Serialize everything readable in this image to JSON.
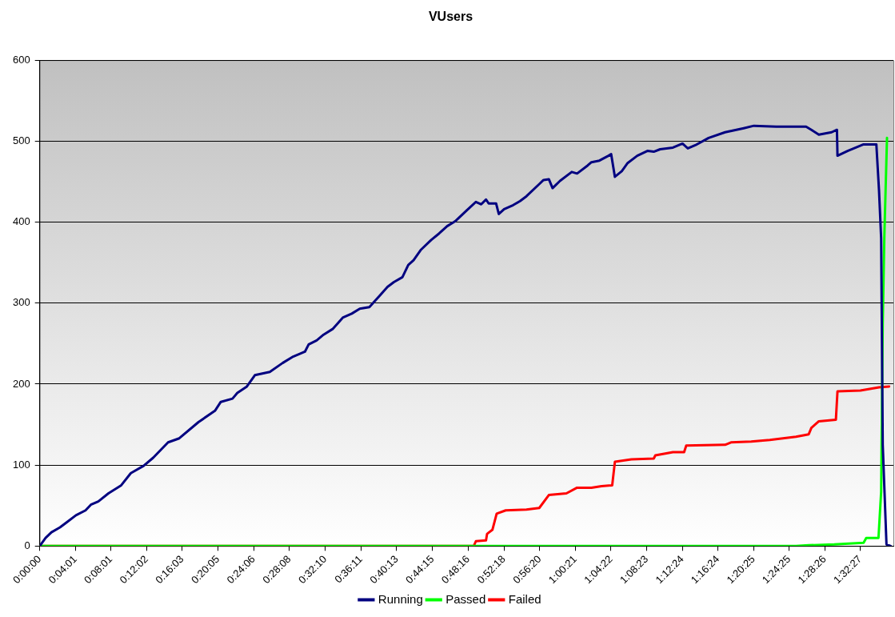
{
  "chart_data": {
    "type": "line",
    "title": "VUsers",
    "xlim": [
      0,
      1.603
    ],
    "ylim": [
      0,
      600
    ],
    "yticks": [
      0,
      100,
      200,
      300,
      400,
      500,
      600
    ],
    "xticks": [
      {
        "value": 0,
        "label": "0:00:00"
      },
      {
        "value": 0.06694,
        "label": "0:04:01"
      },
      {
        "value": 0.13361,
        "label": "0:08:01"
      },
      {
        "value": 0.20056,
        "label": "0:12:02"
      },
      {
        "value": 0.2675,
        "label": "0:16:03"
      },
      {
        "value": 0.33472,
        "label": "0:20:05"
      },
      {
        "value": 0.40167,
        "label": "0:24:06"
      },
      {
        "value": 0.46889,
        "label": "0:28:08"
      },
      {
        "value": 0.53611,
        "label": "0:32:10"
      },
      {
        "value": 0.60306,
        "label": "0:36:11"
      },
      {
        "value": 0.67028,
        "label": "0:40:13"
      },
      {
        "value": 0.7375,
        "label": "0:44:15"
      },
      {
        "value": 0.80444,
        "label": "0:48:16"
      },
      {
        "value": 0.87167,
        "label": "0:52:18"
      },
      {
        "value": 0.93889,
        "label": "0:56:20"
      },
      {
        "value": 1.00583,
        "label": "1:00:21"
      },
      {
        "value": 1.07278,
        "label": "1:04:22"
      },
      {
        "value": 1.13972,
        "label": "1:08:23"
      },
      {
        "value": 1.20667,
        "label": "1:12:24"
      },
      {
        "value": 1.27333,
        "label": "1:16:24"
      },
      {
        "value": 1.34028,
        "label": "1:20:25"
      },
      {
        "value": 1.40694,
        "label": "1:24:25"
      },
      {
        "value": 1.47389,
        "label": "1:28:26"
      },
      {
        "value": 1.54083,
        "label": "1:32:27"
      }
    ],
    "grid": "y",
    "legend": "bottom",
    "marker": "none",
    "line_style": "solid",
    "series": [
      {
        "name": "Running",
        "color": "#000080",
        "x": [
          0,
          0.011,
          0.022,
          0.038,
          0.05,
          0.068,
          0.086,
          0.096,
          0.11,
          0.129,
          0.153,
          0.171,
          0.195,
          0.213,
          0.241,
          0.262,
          0.298,
          0.329,
          0.34,
          0.362,
          0.371,
          0.389,
          0.404,
          0.432,
          0.456,
          0.476,
          0.498,
          0.505,
          0.52,
          0.533,
          0.55,
          0.569,
          0.586,
          0.601,
          0.619,
          0.638,
          0.653,
          0.665,
          0.681,
          0.692,
          0.702,
          0.716,
          0.735,
          0.75,
          0.765,
          0.78,
          0.801,
          0.819,
          0.829,
          0.838,
          0.843,
          0.857,
          0.862,
          0.872,
          0.889,
          0.902,
          0.914,
          0.938,
          0.946,
          0.956,
          0.963,
          0.977,
          0.999,
          1.009,
          1.029,
          1.036,
          1.051,
          1.068,
          1.073,
          1.08,
          1.093,
          1.104,
          1.122,
          1.141,
          1.153,
          1.165,
          1.189,
          1.207,
          1.217,
          1.231,
          1.256,
          1.287,
          1.322,
          1.341,
          1.383,
          1.439,
          1.449,
          1.463,
          1.487,
          1.497,
          1.498,
          1.517,
          1.547,
          1.571,
          1.576,
          1.58,
          1.583,
          1.59,
          1.598
        ],
        "values": [
          0,
          10,
          17,
          23,
          29,
          38,
          44,
          51,
          55,
          65,
          75,
          90,
          99,
          109,
          128,
          133,
          153,
          167,
          178,
          182,
          189,
          197,
          211,
          215,
          226,
          234,
          240,
          249,
          254,
          261,
          268,
          282,
          287,
          293,
          295,
          309,
          320,
          326,
          332,
          347,
          353,
          366,
          378,
          386,
          395,
          401,
          414,
          425,
          422,
          428,
          423,
          423,
          410,
          416,
          421,
          426,
          432,
          447,
          452,
          453,
          442,
          451,
          462,
          460,
          470,
          474,
          476,
          482,
          484,
          456,
          463,
          473,
          482,
          488,
          487,
          490,
          492,
          497,
          491,
          495,
          504,
          511,
          516,
          519,
          518,
          518,
          514,
          508,
          511,
          514,
          482,
          488,
          496,
          496,
          439,
          380,
          125,
          2,
          0
        ]
      },
      {
        "name": "Passed",
        "color": "#00ff00",
        "x": [
          0,
          1.42,
          1.444,
          1.492,
          1.547,
          1.552,
          1.575,
          1.58,
          1.583,
          1.586,
          1.591
        ],
        "values": [
          0,
          0,
          1,
          2,
          4,
          10,
          10,
          67,
          276,
          383,
          504
        ]
      },
      {
        "name": "Failed",
        "color": "#ff0000",
        "x": [
          0,
          0.815,
          0.819,
          0.838,
          0.84,
          0.85,
          0.858,
          0.875,
          0.914,
          0.938,
          0.956,
          0.989,
          1.009,
          1.036,
          1.055,
          1.075,
          1.08,
          1.111,
          1.153,
          1.156,
          1.189,
          1.21,
          1.214,
          1.287,
          1.298,
          1.336,
          1.371,
          1.42,
          1.444,
          1.449,
          1.463,
          1.495,
          1.498,
          1.541,
          1.576,
          1.595
        ],
        "values": [
          0,
          0,
          6,
          7,
          15,
          20,
          40,
          44,
          45,
          47,
          63,
          65,
          72,
          72,
          74,
          75,
          104,
          107,
          108,
          112,
          116,
          116,
          124,
          125,
          128,
          129,
          131,
          135,
          138,
          146,
          154,
          156,
          191,
          192,
          196,
          197
        ]
      }
    ]
  }
}
